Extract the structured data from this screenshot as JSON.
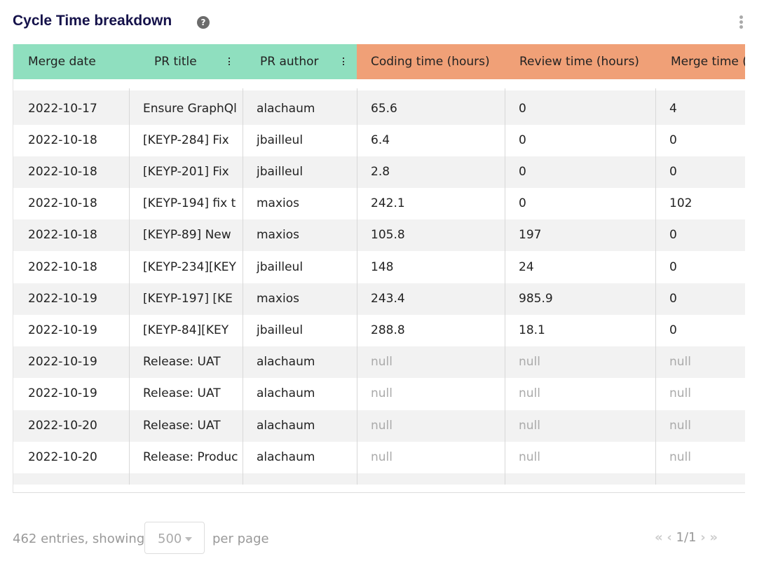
{
  "header": {
    "title": "Cycle Time breakdown"
  },
  "table": {
    "columns": [
      "Merge date",
      "PR title",
      "PR author",
      "Coding time (hours)",
      "Review time (hours)",
      "Merge time ("
    ],
    "rows": [
      [
        "2022-10-17",
        "Ensure GraphQl",
        "alachaum",
        65.6,
        0,
        4
      ],
      [
        "2022-10-18",
        "[KEYP-284] Fix",
        "jbailleul",
        6.4,
        0,
        0
      ],
      [
        "2022-10-18",
        "[KEYP-201] Fix",
        "jbailleul",
        2.8,
        0,
        0
      ],
      [
        "2022-10-18",
        "[KEYP-194] fix t",
        "maxios",
        242.1,
        0,
        102
      ],
      [
        "2022-10-18",
        "[KEYP-89] New",
        "maxios",
        105.8,
        197,
        0
      ],
      [
        "2022-10-18",
        "[KEYP-234][KEY",
        "jbailleul",
        148,
        24,
        0
      ],
      [
        "2022-10-19",
        "[KEYP-197] [KE",
        "maxios",
        243.4,
        985.9,
        0
      ],
      [
        "2022-10-19",
        "[KEYP-84][KEY",
        "jbailleul",
        288.8,
        18.1,
        0
      ],
      [
        "2022-10-19",
        "Release: UAT",
        "alachaum",
        "null",
        "null",
        "null"
      ],
      [
        "2022-10-19",
        "Release: UAT",
        "alachaum",
        "null",
        "null",
        "null"
      ],
      [
        "2022-10-20",
        "Release: UAT",
        "alachaum",
        "null",
        "null",
        "null"
      ],
      [
        "2022-10-20",
        "Release: Produc",
        "alachaum",
        "null",
        "null",
        "null"
      ]
    ]
  },
  "footer": {
    "entries_text": "462 entries, showing",
    "per_page_value": "500",
    "per_page_text": "per page",
    "page": "1/1"
  }
}
